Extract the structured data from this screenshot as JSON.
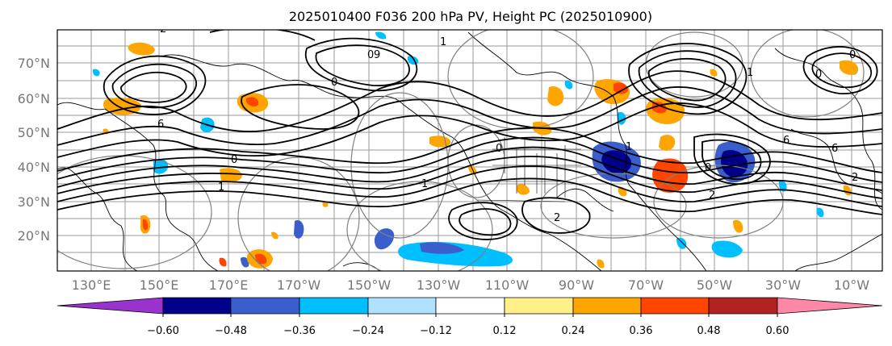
{
  "title": "2025010400 F036 200 hPa PV, Height PC (2025010900)",
  "lat_labels": [
    "70°N",
    "60°N",
    "50°N",
    "40°N",
    "30°N",
    "20°N"
  ],
  "lon_labels": [
    "130°E",
    "150°E",
    "170°E",
    "170°W",
    "150°W",
    "130°W",
    "110°W",
    "90°W",
    "70°W",
    "50°W",
    "30°W",
    "10°W"
  ],
  "colorbar": {
    "ticks": [
      "−0.60",
      "−0.48",
      "−0.36",
      "−0.24",
      "−0.12",
      "0.12",
      "0.24",
      "0.36",
      "0.48",
      "0.60"
    ],
    "colors": [
      "#9a32cd",
      "#00008b",
      "#3a5fcd",
      "#00bfff",
      "#b0e2ff",
      "#ffffff",
      "#fff08a",
      "#ffa500",
      "#ff4500",
      "#b22222",
      "#ff88a8"
    ]
  },
  "contour_labels": [
    "2",
    "1",
    "0",
    "6",
    "0",
    "1",
    "0",
    "2",
    "1",
    "0",
    "6",
    "0",
    "1",
    "0",
    "1",
    "2",
    "0",
    "2",
    "9",
    "6"
  ],
  "colors": {
    "grid": "#9a9a9a",
    "contour": "#000000",
    "circle": "#808080",
    "tick_label": "#777777"
  }
}
